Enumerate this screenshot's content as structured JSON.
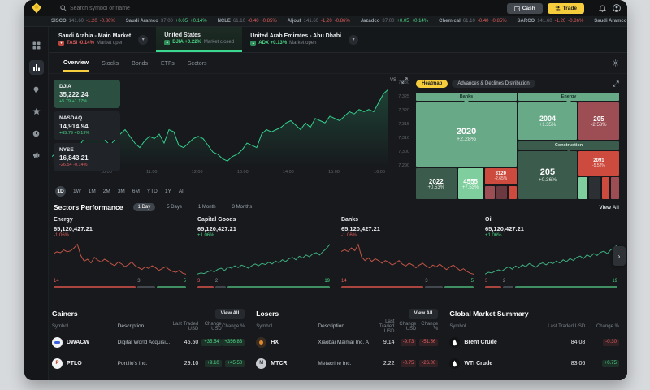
{
  "colors": {
    "accent_yellow": "#f6cd3d",
    "green": "#3bd68f",
    "green_text": "#4cd787",
    "red_text": "#e25c5c",
    "heatmap_green": "#68a987",
    "heatmap_green_bright": "#7fcf9e",
    "heatmap_green_dark": "#3b5c4c",
    "heatmap_red": "#cc4a3e",
    "heatmap_maroon": "#9d4e55"
  },
  "icons": {
    "search": "magnifier",
    "cash": "wallet",
    "trade": "swap-arrows",
    "bell": "notifications",
    "avatar": "user",
    "sidebar": [
      "dashboard-grid",
      "markets-bars",
      "ideas-bulb",
      "watchlist-star",
      "history-clock",
      "announcements-megaphone"
    ],
    "chevron_down": "▾",
    "chevron_right": "›",
    "expand": "diagonal-arrows",
    "gear": "settings"
  },
  "app": {
    "search_placeholder": "Search symbol or name",
    "cash_label": "Cash",
    "trade_label": "Trade"
  },
  "ticker": [
    {
      "name": "SISCO",
      "price": "141.60",
      "change": "-1.20",
      "pct": "-0.86%",
      "dir": "down"
    },
    {
      "name": "Saudi Aramco",
      "price": "37.00",
      "change": "+0.05",
      "pct": "+0.14%",
      "dir": "up"
    },
    {
      "name": "NCLE",
      "price": "61.10",
      "change": "-0.40",
      "pct": "-0.85%",
      "dir": "down"
    },
    {
      "name": "Aljouf",
      "price": "141.60",
      "change": "-1.20",
      "pct": "-0.86%",
      "dir": "down"
    },
    {
      "name": "Jazadco",
      "price": "37.00",
      "change": "+0.05",
      "pct": "+0.14%",
      "dir": "up"
    },
    {
      "name": "Chemical",
      "price": "61.10",
      "change": "-0.40",
      "pct": "-0.85%",
      "dir": "down"
    },
    {
      "name": "SARCO",
      "price": "141.60",
      "change": "-1.20",
      "pct": "-0.86%",
      "dir": "down"
    },
    {
      "name": "Saudi Aramco",
      "price": "37.00",
      "change": "+0.05",
      "pct": "+0.14%",
      "dir": "up"
    },
    {
      "name": "NCLE",
      "price": "61.10",
      "change": "-0.40",
      "pct": "-0.85%",
      "dir": "down"
    }
  ],
  "markets": [
    {
      "name": "Saudi Arabia - Main Market",
      "index": "TASI",
      "pct": "-0.14%",
      "status": "Market open",
      "dir": "down"
    },
    {
      "name": "United States",
      "index": "DJIA",
      "pct": "+0.22%",
      "status": "Market closed",
      "dir": "up"
    },
    {
      "name": "United Arab Emirates - Abu Dhabi",
      "index": "ADX",
      "pct": "+0.13%",
      "status": "Market open",
      "dir": "up"
    }
  ],
  "tabs": [
    "Overview",
    "Stocks",
    "Bonds",
    "ETFs",
    "Sectors"
  ],
  "indices": [
    {
      "name": "DJIA",
      "value": "35,222.24",
      "change": "+5.79 +1.17%",
      "dir": "up"
    },
    {
      "name": "NASDAQ",
      "value": "14,914.94",
      "change": "+65.79 +0.19%",
      "dir": "up"
    },
    {
      "name": "NYSE",
      "value": "16,843.21",
      "change": "-26.54 -0.14%",
      "dir": "down"
    }
  ],
  "chart": {
    "vs_label": "VS",
    "ranges": [
      "1D",
      "1W",
      "1M",
      "2M",
      "3M",
      "6M",
      "YTD",
      "1Y",
      "All"
    ],
    "active_range": "1D"
  },
  "chart_data": {
    "main": {
      "type": "line",
      "title": "DJIA intraday",
      "x_ticks": [
        "10:00",
        "11:00",
        "12:00",
        "13:00",
        "14:00",
        "15:00",
        "16:00"
      ],
      "y_ticks": [
        "7,330",
        "7,325",
        "7,320",
        "7,315",
        "7,310",
        "7,300",
        "7,290"
      ],
      "ylim": [
        7290,
        7335
      ],
      "values": [
        7300,
        7302,
        7304,
        7303,
        7305,
        7304,
        7306,
        7310,
        7308,
        7312,
        7311,
        7307,
        7305,
        7308,
        7310,
        7312,
        7309,
        7306,
        7304,
        7307,
        7309,
        7308,
        7310,
        7306,
        7312,
        7311,
        7305,
        7304,
        7306,
        7308,
        7309,
        7308,
        7305,
        7302,
        7301,
        7299,
        7298,
        7300,
        7301,
        7303,
        7306,
        7305,
        7304,
        7310,
        7312,
        7311,
        7312,
        7313,
        7315,
        7316,
        7314,
        7312,
        7315,
        7313,
        7317,
        7316,
        7315,
        7318,
        7317,
        7316,
        7318,
        7320,
        7319,
        7321,
        7320,
        7321,
        7320,
        7324,
        7328,
        7330
      ]
    },
    "sector_sparklines": [
      {
        "name": "Energy",
        "type": "line",
        "values": [
          82,
          84,
          83,
          86,
          84,
          85,
          88,
          92,
          80,
          74,
          76,
          72,
          78,
          75,
          73,
          76,
          74,
          71,
          69,
          73,
          71,
          68,
          70,
          73,
          69,
          67,
          65,
          68,
          66,
          69,
          67,
          64,
          66,
          68,
          65,
          63,
          62,
          64,
          61,
          60
        ]
      },
      {
        "name": "Capital Goods",
        "type": "line",
        "values": [
          30,
          32,
          31,
          34,
          36,
          34,
          38,
          40,
          36,
          42,
          40,
          44,
          41,
          45,
          43,
          40,
          44,
          47,
          44,
          48,
          46,
          50,
          47,
          52,
          49,
          54,
          51,
          56,
          58,
          54,
          60,
          57,
          62,
          59,
          64,
          66,
          62,
          68,
          73,
          80
        ]
      },
      {
        "name": "Banks",
        "type": "line",
        "values": [
          84,
          86,
          84,
          88,
          85,
          92,
          78,
          74,
          77,
          73,
          76,
          74,
          71,
          74,
          72,
          69,
          71,
          74,
          70,
          68,
          71,
          69,
          66,
          69,
          71,
          68,
          66,
          69,
          67,
          70,
          67,
          64,
          67,
          69,
          66,
          63,
          65,
          62,
          60,
          59
        ]
      },
      {
        "name": "Oil",
        "type": "line",
        "values": [
          28,
          31,
          30,
          33,
          35,
          33,
          37,
          40,
          36,
          41,
          38,
          43,
          40,
          45,
          42,
          39,
          44,
          46,
          43,
          47,
          45,
          49,
          46,
          51,
          48,
          53,
          50,
          55,
          57,
          53,
          59,
          56,
          61,
          58,
          63,
          65,
          61,
          67,
          70,
          76
        ]
      }
    ]
  },
  "heatmap": {
    "tabs": [
      {
        "label": "Heatmap"
      },
      {
        "label": "Advances & Declines Distribution"
      }
    ],
    "groups": {
      "banks": {
        "label": "Banks",
        "cells": [
          {
            "code": "2020",
            "pct": "+2.28%"
          },
          {
            "code": "2022",
            "pct": "+0.53%"
          },
          {
            "code": "4555",
            "pct": "+7.53%"
          },
          {
            "code": "3120",
            "pct": "-2.65%"
          }
        ]
      },
      "energy": {
        "label": "Energy",
        "cells": [
          {
            "code": "2004",
            "pct": "+1.35%"
          },
          {
            "code": "205",
            "pct": "-2.53%"
          }
        ]
      },
      "construction": {
        "label": "Construction",
        "cells": [
          {
            "code": "205",
            "pct": "+0.36%"
          },
          {
            "code": "2091",
            "pct": "-5.52%"
          }
        ]
      }
    }
  },
  "sectors": {
    "title": "Sectors Performance",
    "filters": [
      "1 Day",
      "5 Days",
      "1 Month",
      "3 Months"
    ],
    "active_filter": "1 Day",
    "view_all": "View All",
    "cards": [
      {
        "name": "Energy",
        "value": "65,120,427.21",
        "pct": "-1.06%",
        "dir": "down",
        "dist": {
          "down": 14,
          "flat": 3,
          "up": 5
        }
      },
      {
        "name": "Capital Goods",
        "value": "65,120,427.21",
        "pct": "+1.06%",
        "dir": "up",
        "dist": {
          "down": 3,
          "flat": 2,
          "up": 19
        }
      },
      {
        "name": "Banks",
        "value": "65,120,427.21",
        "pct": "-1.06%",
        "dir": "down",
        "dist": {
          "down": 14,
          "flat": 3,
          "up": 5
        }
      },
      {
        "name": "Oil",
        "value": "65,120,427.21",
        "pct": "+1.06%",
        "dir": "up",
        "dist": {
          "down": 3,
          "flat": 2,
          "up": 19
        }
      }
    ]
  },
  "gainers": {
    "title": "Gainers",
    "view_all": "View All",
    "columns": [
      "Symbol",
      "Description",
      "Last Traded USD",
      "Change USD",
      "Change %"
    ],
    "rows": [
      {
        "symbol": "DWACW",
        "description": "Digital World Acquisi...",
        "last": "45.50",
        "change": "+35.54",
        "pct": "+356.83"
      },
      {
        "symbol": "PTLO",
        "description": "Portillo's Inc.",
        "last": "29.10",
        "change": "+9.10",
        "pct": "+45.50"
      }
    ]
  },
  "losers": {
    "title": "Losers",
    "view_all": "View All",
    "columns": [
      "Symbol",
      "Description",
      "Last Traded USD",
      "Change USD",
      "Change %"
    ],
    "rows": [
      {
        "symbol": "HX",
        "description": "Xiaobai Maimai Inc. ADR",
        "last": "9.14",
        "change": "-9.73",
        "pct": "-51.56"
      },
      {
        "symbol": "MTCR",
        "description": "Metacrine Inc.",
        "last": "2.22",
        "change": "-0.75",
        "pct": "-26.00"
      }
    ]
  },
  "global": {
    "title": "Global Market Summary",
    "columns": [
      "Symbol",
      "Last Traded USD",
      "Change %"
    ],
    "rows": [
      {
        "symbol": "Brent Crude",
        "last": "84.08",
        "pct": "-0.30",
        "dir": "down"
      },
      {
        "symbol": "WTI Crude",
        "last": "83.06",
        "pct": "+0.75",
        "dir": "up"
      }
    ]
  }
}
